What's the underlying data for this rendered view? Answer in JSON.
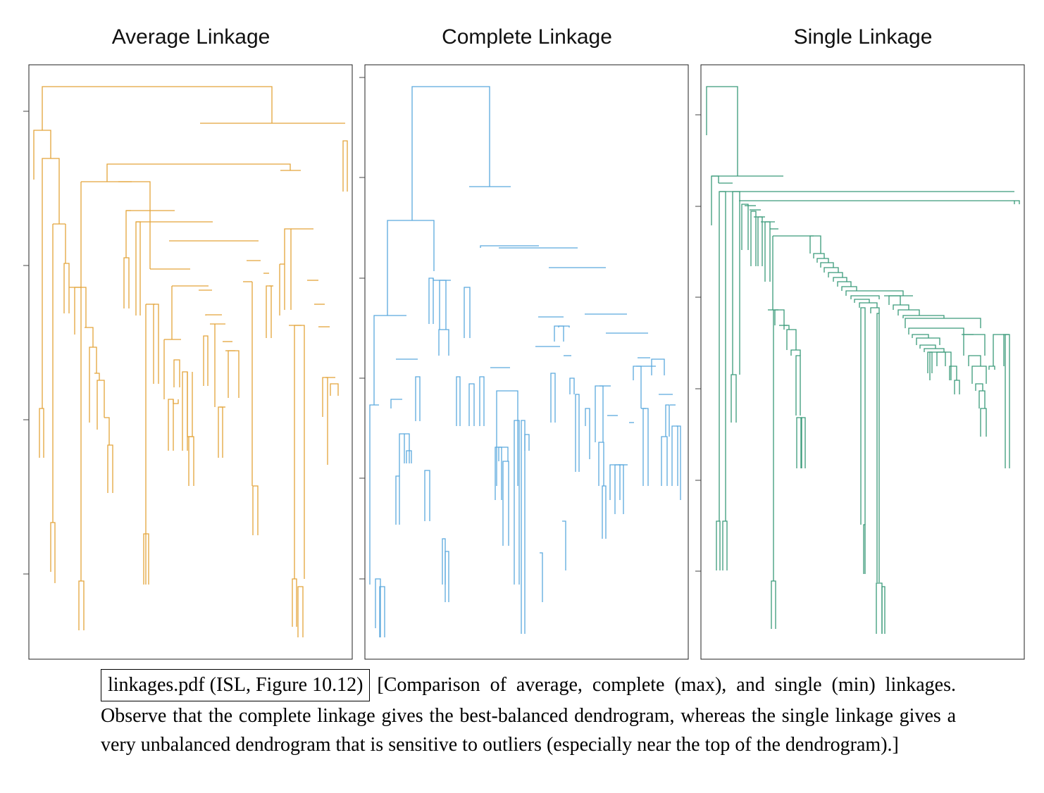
{
  "chart_data": [
    {
      "type": "dendrogram",
      "title": "Average Linkage",
      "color": "#e3a43a",
      "xlabel": "",
      "ylabel": "",
      "tick_labels": []
    },
    {
      "type": "dendrogram",
      "title": "Complete Linkage",
      "color": "#5aa9dd",
      "xlabel": "",
      "ylabel": "",
      "tick_labels": []
    },
    {
      "type": "dendrogram",
      "title": "Single Linkage",
      "color": "#3a9a7a",
      "xlabel": "",
      "ylabel": "",
      "tick_labels": []
    }
  ],
  "caption": {
    "file_label": "linkages.pdf (ISL, Figure 10.12)",
    "text": "[Comparison of average, complete (max), and single (min) linkages.  Observe that the complete linkage gives the best-balanced dendrogram, whereas the single linkage gives a very unbalanced dendrogram that is sensitive to outliers (especially near the top of the dendrogram).]"
  }
}
